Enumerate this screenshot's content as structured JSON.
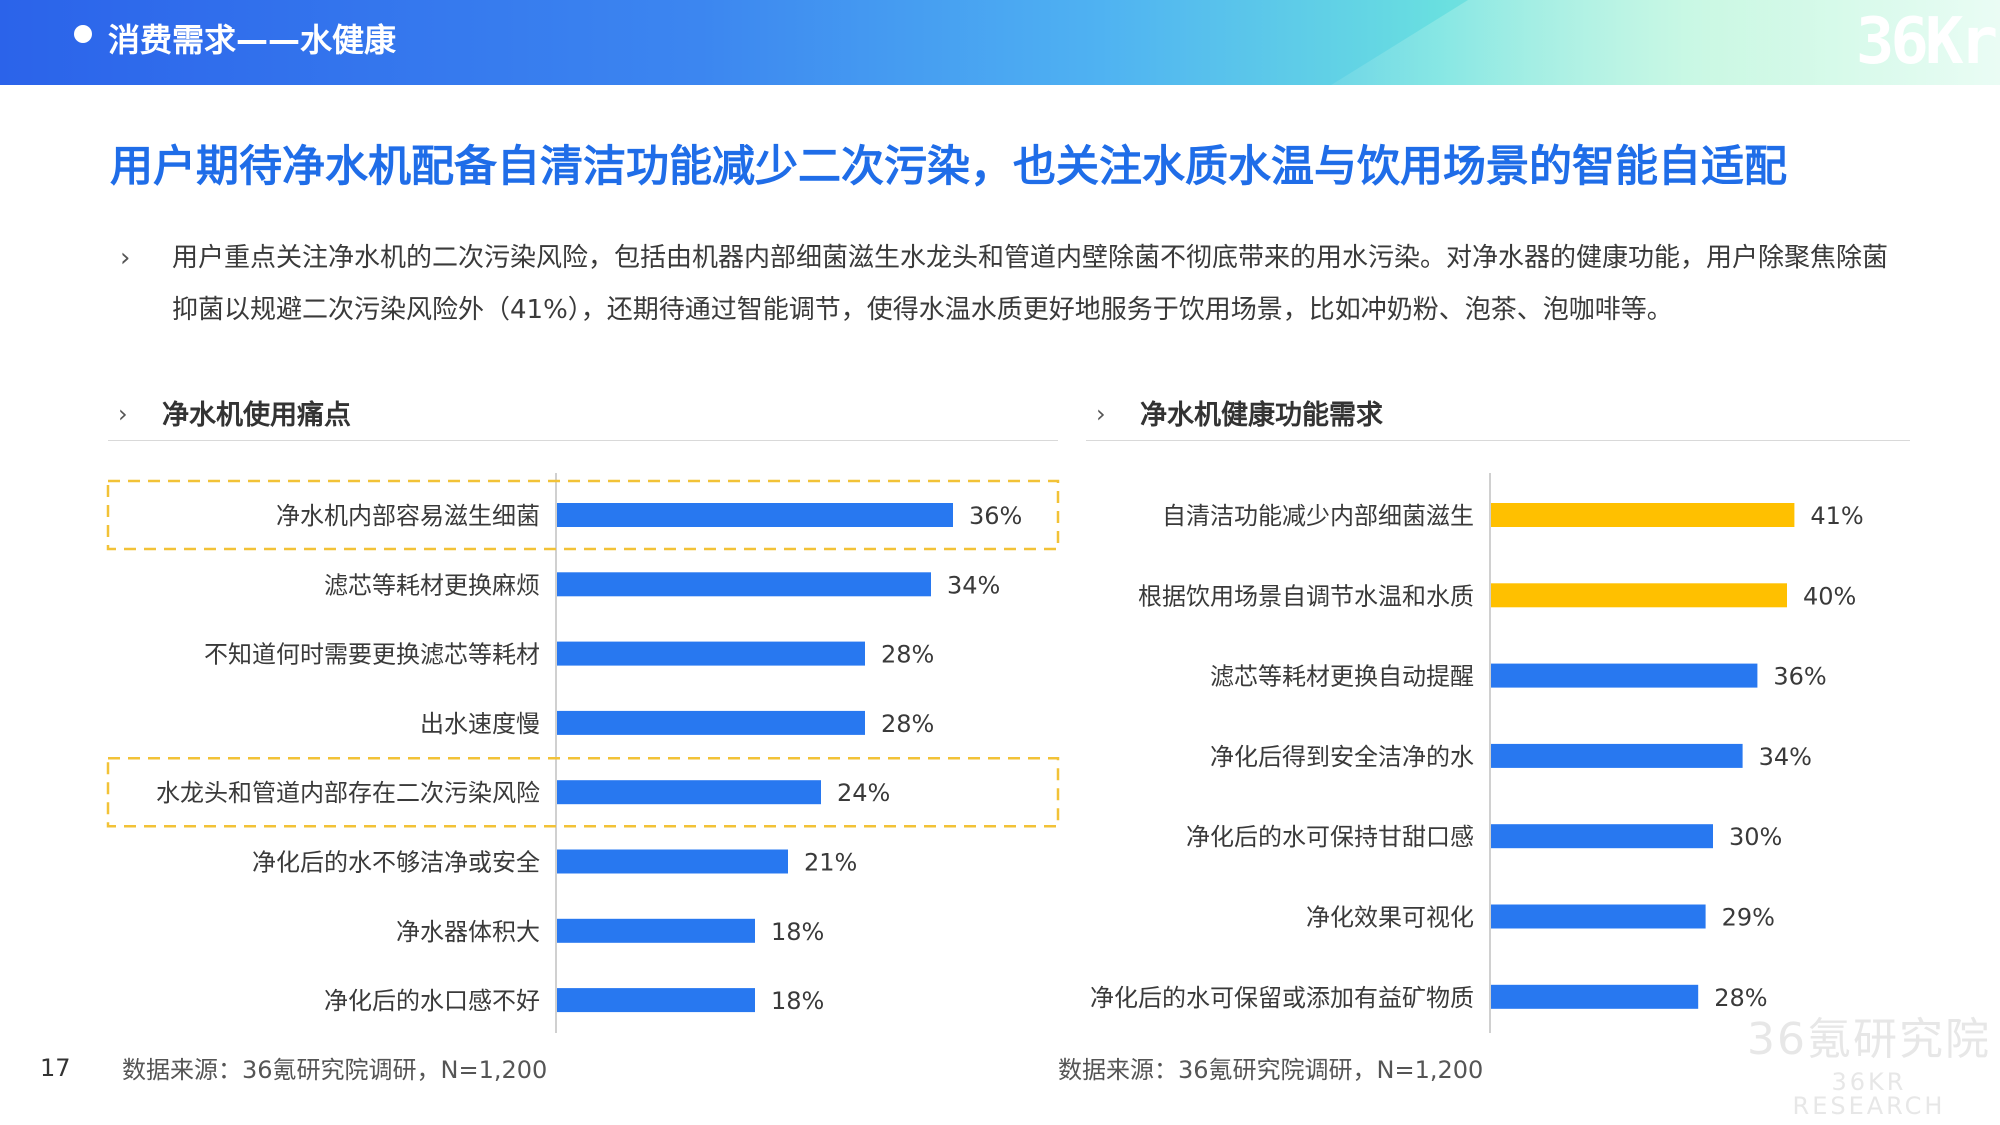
{
  "header": {
    "title": "消费需求——水健康",
    "logo": "36Kr"
  },
  "main_title": "用户期待净水机配备自清洁功能减少二次污染，也关注水质水温与饮用场景的智能自适配",
  "summary": "用户重点关注净水机的二次污染风险，包括由机器内部细菌滋生水龙头和管道内壁除菌不彻底带来的用水污染。对净水器的健康功能，用户除聚焦除菌抑菌以规避二次污染风险外（41%），还期待通过智能调节，使得水温水质更好地服务于饮用场景，比如冲奶粉、泡茶、泡咖啡等。",
  "left_panel_title": "净水机使用痛点",
  "right_panel_title": "净水机健康功能需求",
  "source_left": "数据来源：36氪研究院调研，N=1,200",
  "source_right": "数据来源：36氪研究院调研，N=1,200",
  "page_number": "17",
  "watermark": {
    "cn": "36氪研究院",
    "en": "36KR RESEARCH"
  },
  "colors": {
    "blue": "#2878f0",
    "yellow": "#ffc000",
    "highlight_border": "#f2c237",
    "title_blue": "#1f6de8"
  },
  "chart_data": [
    {
      "type": "bar",
      "orientation": "horizontal",
      "title": "净水机使用痛点",
      "categories": [
        "净水机内部容易滋生细菌",
        "滤芯等耗材更换麻烦",
        "不知道何时需要更换滤芯等耗材",
        "出水速度慢",
        "水龙头和管道内部存在二次污染风险",
        "净化后的水不够洁净或安全",
        "净水器体积大",
        "净化后的水口感不好"
      ],
      "values": [
        36,
        34,
        28,
        28,
        24,
        21,
        18,
        18
      ],
      "labels": [
        "36%",
        "34%",
        "28%",
        "28%",
        "24%",
        "21%",
        "18%",
        "18%"
      ],
      "highlighted": [
        0,
        4
      ],
      "bar_color": "#2878f0",
      "unit": "%"
    },
    {
      "type": "bar",
      "orientation": "horizontal",
      "title": "净水机健康功能需求",
      "categories": [
        "自清洁功能减少内部细菌滋生",
        "根据饮用场景自调节水温和水质",
        "滤芯等耗材更换自动提醒",
        "净化后得到安全洁净的水",
        "净化后的水可保持甘甜口感",
        "净化效果可视化",
        "净化后的水可保留或添加有益矿物质"
      ],
      "values": [
        41,
        40,
        36,
        34,
        30,
        29,
        28
      ],
      "labels": [
        "41%",
        "40%",
        "36%",
        "34%",
        "30%",
        "29%",
        "28%"
      ],
      "bar_colors": [
        "#ffc000",
        "#ffc000",
        "#2878f0",
        "#2878f0",
        "#2878f0",
        "#2878f0",
        "#2878f0"
      ],
      "unit": "%"
    }
  ]
}
